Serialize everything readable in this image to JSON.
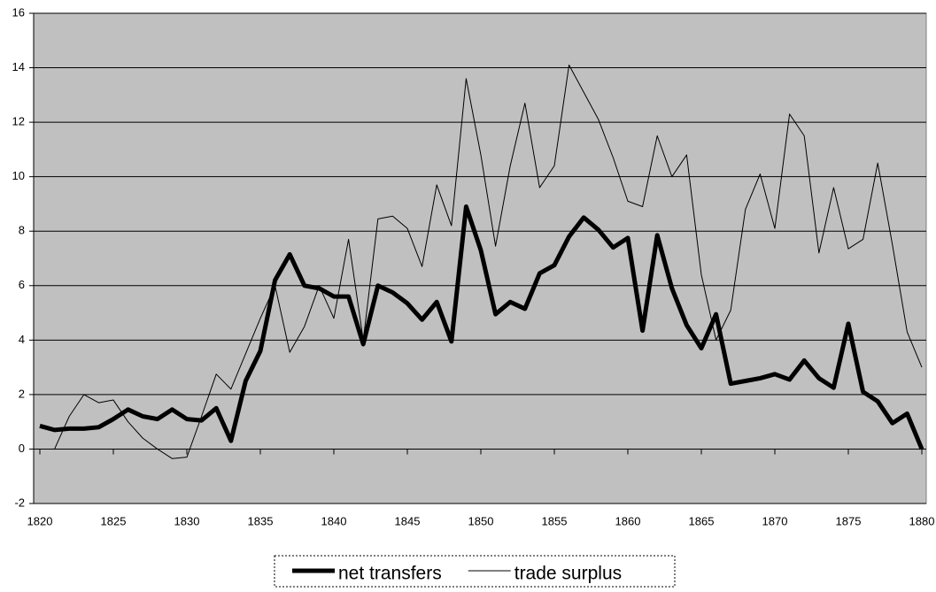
{
  "chart_data": {
    "type": "line",
    "x": [
      1820,
      1821,
      1822,
      1823,
      1824,
      1825,
      1826,
      1827,
      1828,
      1829,
      1830,
      1831,
      1832,
      1833,
      1834,
      1835,
      1836,
      1837,
      1838,
      1839,
      1840,
      1841,
      1842,
      1843,
      1844,
      1845,
      1846,
      1847,
      1848,
      1849,
      1850,
      1851,
      1852,
      1853,
      1854,
      1855,
      1856,
      1857,
      1858,
      1859,
      1860,
      1861,
      1862,
      1863,
      1864,
      1865,
      1866,
      1867,
      1868,
      1869,
      1870,
      1871,
      1872,
      1873,
      1874,
      1875,
      1876,
      1877,
      1878,
      1879,
      1880
    ],
    "series": [
      {
        "name": "net transfers",
        "color": "#000000",
        "width": 5,
        "values": [
          0.85,
          0.7,
          0.75,
          0.75,
          0.8,
          1.1,
          1.45,
          1.2,
          1.1,
          1.45,
          1.1,
          1.05,
          1.5,
          0.3,
          2.5,
          3.6,
          6.2,
          7.15,
          6.0,
          5.9,
          5.6,
          5.6,
          3.85,
          6.0,
          5.75,
          5.35,
          4.75,
          5.4,
          3.95,
          8.9,
          7.3,
          4.95,
          5.4,
          5.15,
          6.45,
          6.75,
          7.8,
          8.5,
          8.05,
          7.4,
          7.75,
          4.35,
          7.85,
          5.9,
          4.55,
          3.7,
          4.95,
          2.4,
          2.5,
          2.6,
          2.75,
          2.55,
          3.25,
          2.6,
          2.25,
          4.6,
          2.1,
          1.75,
          0.95,
          1.3,
          0
        ]
      },
      {
        "name": "trade surplus",
        "color": "#000000",
        "width": 1,
        "values": [
          null,
          0,
          1.2,
          2.0,
          1.7,
          1.8,
          1.0,
          0.4,
          0.0,
          -0.35,
          -0.3,
          1.2,
          2.75,
          2.2,
          3.5,
          4.8,
          6.0,
          3.55,
          4.5,
          6.0,
          4.8,
          7.7,
          4.0,
          8.45,
          8.55,
          8.1,
          6.7,
          9.7,
          8.2,
          13.6,
          10.8,
          7.45,
          10.4,
          12.7,
          9.6,
          10.4,
          14.1,
          13.1,
          12.1,
          10.7,
          9.1,
          8.9,
          11.5,
          10.0,
          10.8,
          6.4,
          4.0,
          5.1,
          8.8,
          10.1,
          8.1,
          12.3,
          11.5,
          7.2,
          9.6,
          7.35,
          7.7,
          10.5,
          7.5,
          4.3,
          3.0
        ]
      }
    ],
    "xlim": [
      1820,
      1880
    ],
    "xticks": [
      1820,
      1825,
      1830,
      1835,
      1840,
      1845,
      1850,
      1855,
      1860,
      1865,
      1870,
      1875,
      1880
    ],
    "ylim": [
      -2,
      16
    ],
    "yticks": [
      -2,
      0,
      2,
      4,
      6,
      8,
      10,
      12,
      14,
      16
    ],
    "grid": true,
    "background": "#c0c0c0",
    "legend": "bottom"
  }
}
